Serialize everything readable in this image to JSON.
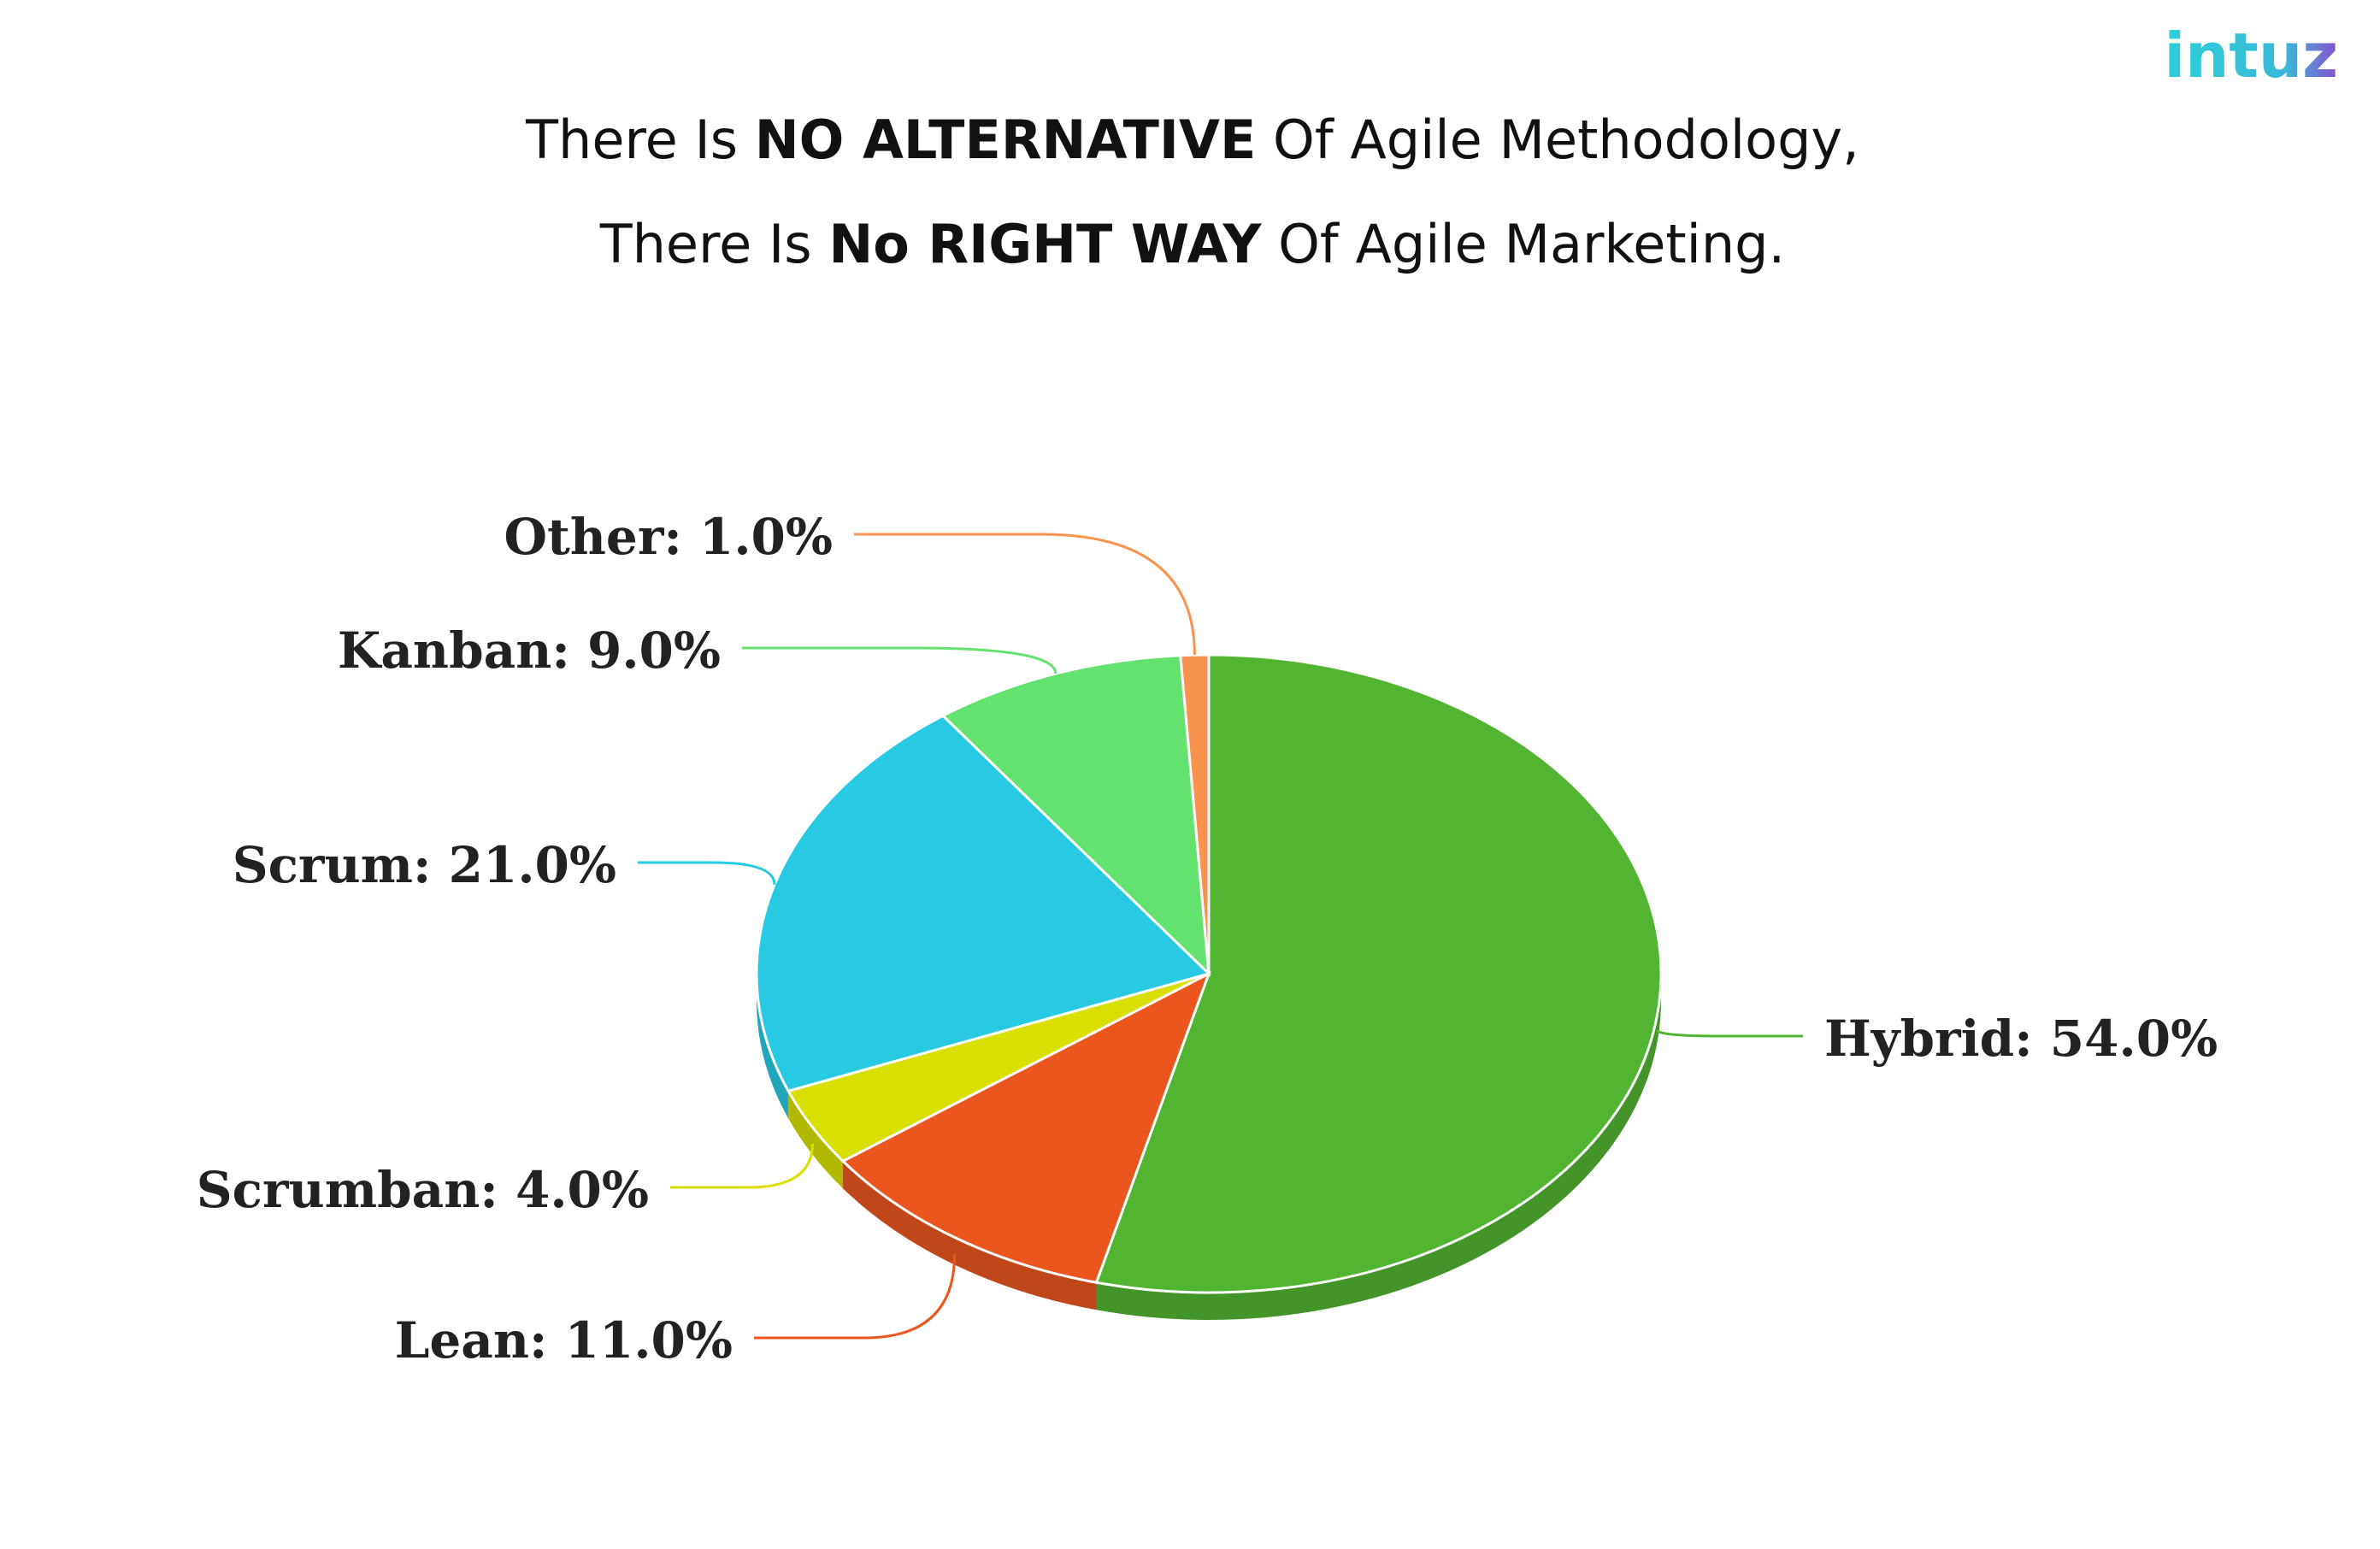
{
  "chart_data": {
    "type": "pie",
    "title": [
      [
        {
          "text": "There Is ",
          "bold": false
        },
        {
          "text": "NO ALTERNATIVE",
          "bold": true
        },
        {
          "text": " Of Agile Methodology,",
          "bold": false
        }
      ],
      [
        {
          "text": "There Is ",
          "bold": false
        },
        {
          "text": "No RIGHT WAY",
          "bold": true
        },
        {
          "text": " Of Agile Marketing.",
          "bold": false
        }
      ]
    ],
    "logo": "intuz",
    "values": [
      54,
      11,
      4,
      21,
      9,
      1
    ],
    "value_labels": [
      "Hybrid: 54.0%",
      "Lean: 11.0%",
      "Scrumban: 4.0%",
      "Scrum: 21.0%",
      "Kanban: 9.0%",
      "Other: 1.0%"
    ],
    "colors": [
      "#52b532",
      "#ea561e",
      "#d9df00",
      "#27c9e3",
      "#64e26f",
      "#f9924f"
    ]
  }
}
